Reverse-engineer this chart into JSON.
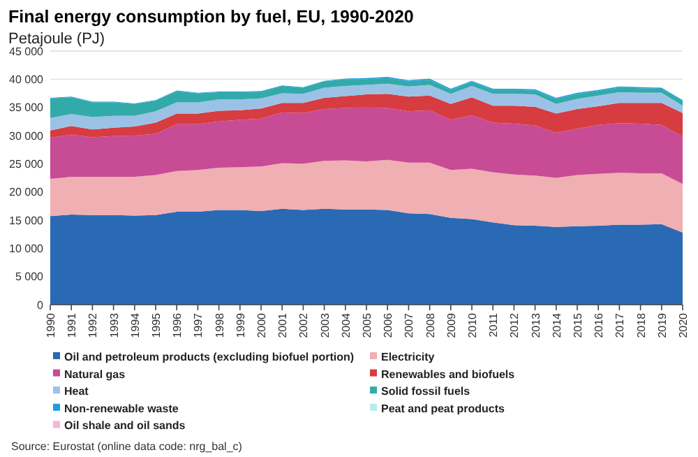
{
  "chart_data": {
    "type": "area",
    "stacked": true,
    "title": "Final energy consumption by fuel, EU, 1990-2020",
    "subtitle": "Petajoule (PJ)",
    "categories": [
      "1990",
      "1991",
      "1992",
      "1993",
      "1994",
      "1995",
      "1996",
      "1997",
      "1998",
      "1999",
      "2000",
      "2001",
      "2002",
      "2003",
      "2004",
      "2005",
      "2006",
      "2007",
      "2008",
      "2009",
      "2010",
      "2011",
      "2012",
      "2013",
      "2014",
      "2015",
      "2016",
      "2017",
      "2018",
      "2019",
      "2020"
    ],
    "series": [
      {
        "name": "Oil and petroleum products (excluding biofuel portion)",
        "color": "#2a6ab4",
        "values": [
          15700,
          16000,
          15900,
          15900,
          15800,
          15900,
          16500,
          16500,
          16800,
          16800,
          16600,
          17000,
          16800,
          17000,
          16900,
          16900,
          16800,
          16200,
          16100,
          15400,
          15200,
          14600,
          14100,
          14000,
          13800,
          13900,
          14000,
          14200,
          14200,
          14300,
          12800
        ]
      },
      {
        "name": "Electricity",
        "color": "#f0afb2",
        "values": [
          6600,
          6700,
          6800,
          6800,
          6900,
          7100,
          7200,
          7400,
          7500,
          7600,
          7900,
          8100,
          8200,
          8500,
          8700,
          8500,
          8900,
          9000,
          9100,
          8500,
          8900,
          8900,
          9000,
          8900,
          8700,
          9100,
          9200,
          9200,
          9100,
          9000,
          8600
        ]
      },
      {
        "name": "Natural gas",
        "color": "#c84b96",
        "values": [
          7300,
          7500,
          7000,
          7200,
          7300,
          7300,
          8300,
          8100,
          8200,
          8400,
          8500,
          9000,
          9000,
          9200,
          9300,
          9600,
          9200,
          9100,
          9300,
          8900,
          9500,
          8800,
          9000,
          8900,
          8000,
          8200,
          8700,
          8800,
          8800,
          8600,
          8400
        ]
      },
      {
        "name": "Renewables and biofuels",
        "color": "#d73c41",
        "values": [
          1300,
          1500,
          1400,
          1500,
          1600,
          2000,
          1900,
          1900,
          1900,
          1700,
          1800,
          1700,
          1800,
          2000,
          2100,
          2300,
          2500,
          2600,
          2600,
          2800,
          3200,
          3000,
          3200,
          3300,
          3400,
          3500,
          3300,
          3600,
          3700,
          3900,
          4200
        ]
      },
      {
        "name": "Heat",
        "color": "#9bc2e6",
        "values": [
          2200,
          2100,
          2200,
          2100,
          1900,
          2000,
          2000,
          2000,
          2000,
          1900,
          1800,
          1700,
          1600,
          1800,
          1800,
          1700,
          1800,
          1800,
          1900,
          1800,
          2000,
          2100,
          2100,
          2200,
          1700,
          1800,
          1900,
          1900,
          1800,
          1800,
          1300
        ]
      },
      {
        "name": "Solid fossil fuels",
        "color": "#33aaaa",
        "values": [
          3500,
          3000,
          2600,
          2400,
          2100,
          1900,
          2000,
          1600,
          1300,
          1300,
          1200,
          1300,
          1100,
          1100,
          1200,
          1000,
          1000,
          900,
          900,
          700,
          700,
          700,
          700,
          700,
          900,
          900,
          800,
          800,
          800,
          700,
          800
        ]
      },
      {
        "name": "Non-renewable waste",
        "color": "#1a9ee0",
        "values": [
          100,
          100,
          100,
          100,
          100,
          100,
          100,
          100,
          100,
          100,
          100,
          100,
          100,
          100,
          100,
          200,
          200,
          200,
          200,
          200,
          200,
          200,
          200,
          200,
          200,
          200,
          200,
          200,
          200,
          200,
          200
        ]
      },
      {
        "name": "Peat and peat products",
        "color": "#b9ecec",
        "values": [
          null,
          null,
          null,
          null,
          null,
          null,
          null,
          null,
          null,
          null,
          null,
          null,
          null,
          null,
          null,
          null,
          null,
          null,
          null,
          null,
          null,
          null,
          null,
          null,
          null,
          null,
          null,
          null,
          null,
          null,
          null
        ]
      },
      {
        "name": "Oil shale and oil sands",
        "color": "#f0b8d8",
        "values": [
          null,
          null,
          null,
          null,
          null,
          null,
          null,
          null,
          null,
          null,
          null,
          null,
          null,
          null,
          null,
          null,
          null,
          null,
          null,
          null,
          null,
          null,
          null,
          null,
          null,
          null,
          null,
          null,
          null,
          null,
          null
        ]
      }
    ],
    "ylim": [
      0,
      45000
    ],
    "yticks": [
      {
        "value": 0,
        "label": "0"
      },
      {
        "value": 5000,
        "label": "5 000"
      },
      {
        "value": 10000,
        "label": "10 000"
      },
      {
        "value": 15000,
        "label": "15 000"
      },
      {
        "value": 20000,
        "label": "20 000"
      },
      {
        "value": 25000,
        "label": "25 000"
      },
      {
        "value": 30000,
        "label": "30 000"
      },
      {
        "value": 35000,
        "label": "35 000"
      },
      {
        "value": 40000,
        "label": "40 000"
      },
      {
        "value": 45000,
        "label": "45 000"
      }
    ],
    "grid": "y",
    "legend": "bottom",
    "annotations": [
      "Source: Eurostat (online data code: nrg_bal_c)"
    ]
  }
}
